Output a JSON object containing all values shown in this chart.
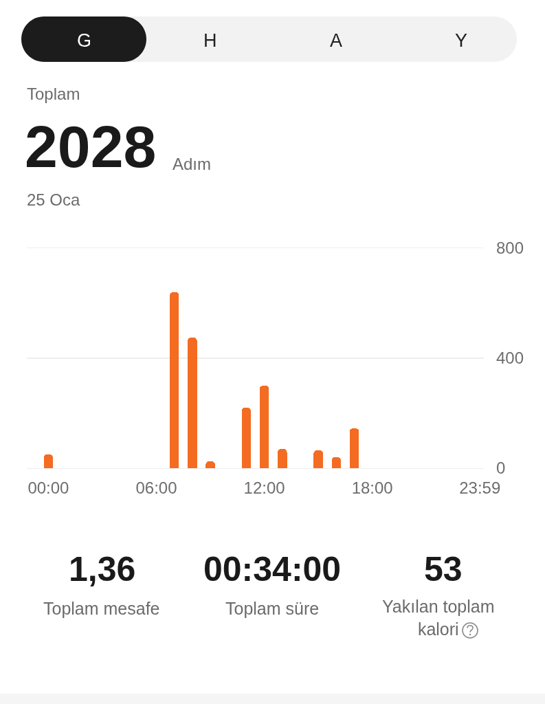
{
  "chart_data": {
    "type": "bar",
    "x": [
      0,
      7,
      8,
      9,
      11,
      12,
      13,
      15,
      16,
      17
    ],
    "values": [
      50,
      640,
      475,
      25,
      220,
      300,
      70,
      65,
      40,
      145
    ],
    "color": "#f36c21",
    "xlim": [
      -1.2,
      24.2
    ],
    "xticks": [
      {
        "value": 0,
        "label": "00:00"
      },
      {
        "value": 6,
        "label": "06:00"
      },
      {
        "value": 12,
        "label": "12:00"
      },
      {
        "value": 18,
        "label": "18:00"
      },
      {
        "value": 23.98,
        "label": "23:59"
      }
    ],
    "ylim": [
      0,
      800
    ],
    "yticks": [
      0,
      400,
      800
    ],
    "grid": "y",
    "annotations": [
      "G",
      "H",
      "A",
      "Y",
      "Toplam",
      "2028",
      "Adım",
      "25 Oca",
      "1,36",
      "Toplam mesafe",
      "00:34:00",
      "Toplam süre",
      "53",
      "Yakılan toplam kalori"
    ]
  }
}
